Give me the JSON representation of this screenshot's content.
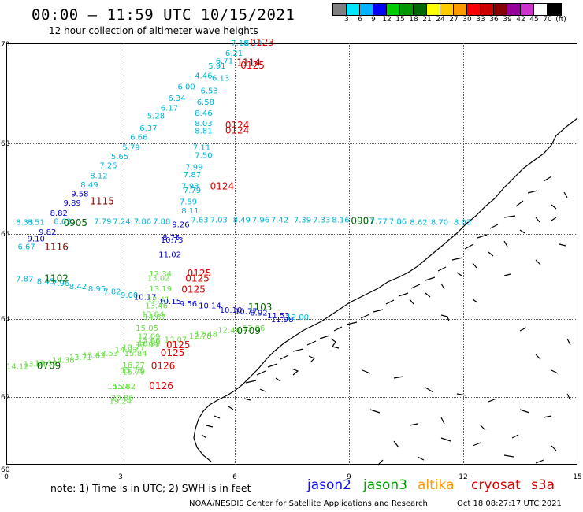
{
  "header": {
    "title": "00:00 – 11:59 UTC 10/15/2021",
    "subtitle": "12 hour collection of altimeter wave heights"
  },
  "colorbar": {
    "colors": [
      "#7f7f7f",
      "#00e6ff",
      "#00b4ff",
      "#0000ff",
      "#00cc00",
      "#009a00",
      "#006600",
      "#ffff00",
      "#ffcc00",
      "#ff9900",
      "#ff0000",
      "#cc0000",
      "#8b0000",
      "#990099",
      "#cc33cc",
      "#ffffff",
      "#000000"
    ],
    "labels": [
      "3",
      "6",
      "9",
      "12",
      "15",
      "18",
      "21",
      "24",
      "27",
      "30",
      "33",
      "36",
      "39",
      "42",
      "45",
      "70",
      "(ft)"
    ]
  },
  "axes": {
    "lat_labels": [
      "70",
      "68",
      "66",
      "64",
      "62",
      "60"
    ],
    "lon_labels": [
      "0",
      "3",
      "6",
      "9",
      "12",
      "15"
    ]
  },
  "satellite_colors": {
    "jason2": "#0000cc",
    "jason3": "#00a000",
    "altika": "#ff9900",
    "cryosat": "#e00000",
    "s3a": "#00b4d8",
    "s3a_light": "#66dd44"
  },
  "observations": [
    {
      "t": "7.18",
      "c": "#00b4d8",
      "lon": 5.9,
      "lat": 69.95
    },
    {
      "t": "6.10",
      "c": "#00b4d8",
      "lon": 6.25,
      "lat": 69.95
    },
    {
      "t": "6.21",
      "c": "#00b4d8",
      "lon": 5.75,
      "lat": 69.75
    },
    {
      "t": "6.71",
      "c": "#00b4d8",
      "lon": 5.5,
      "lat": 69.6
    },
    {
      "t": "5.91",
      "c": "#00b4d8",
      "lon": 5.3,
      "lat": 69.5
    },
    {
      "t": "4.46",
      "c": "#00b4d8",
      "lon": 4.95,
      "lat": 69.3
    },
    {
      "t": "6.13",
      "c": "#00b4d8",
      "lon": 5.4,
      "lat": 69.25
    },
    {
      "t": "6.00",
      "c": "#00b4d8",
      "lon": 4.5,
      "lat": 69.08
    },
    {
      "t": "6.53",
      "c": "#00b4d8",
      "lon": 5.1,
      "lat": 69.0
    },
    {
      "t": "6.34",
      "c": "#00b4d8",
      "lon": 4.25,
      "lat": 68.85
    },
    {
      "t": "6.58",
      "c": "#00b4d8",
      "lon": 5.0,
      "lat": 68.77
    },
    {
      "t": "6.17",
      "c": "#00b4d8",
      "lon": 4.05,
      "lat": 68.65
    },
    {
      "t": "8.46",
      "c": "#00b4d8",
      "lon": 4.95,
      "lat": 68.55
    },
    {
      "t": "5.28",
      "c": "#00b4d8",
      "lon": 3.7,
      "lat": 68.5
    },
    {
      "t": "8.03",
      "c": "#00b4d8",
      "lon": 4.95,
      "lat": 68.35
    },
    {
      "t": "6.37",
      "c": "#00b4d8",
      "lon": 3.5,
      "lat": 68.25
    },
    {
      "t": "8.81",
      "c": "#00b4d8",
      "lon": 4.95,
      "lat": 68.2
    },
    {
      "t": "6.66",
      "c": "#00b4d8",
      "lon": 3.25,
      "lat": 68.07
    },
    {
      "t": "5.79",
      "c": "#00b4d8",
      "lon": 3.05,
      "lat": 67.85
    },
    {
      "t": "7.11",
      "c": "#00b4d8",
      "lon": 4.9,
      "lat": 67.85
    },
    {
      "t": "5.65",
      "c": "#00b4d8",
      "lon": 2.75,
      "lat": 67.65
    },
    {
      "t": "7.50",
      "c": "#00b4d8",
      "lon": 4.95,
      "lat": 67.68
    },
    {
      "t": "7.25",
      "c": "#00b4d8",
      "lon": 2.45,
      "lat": 67.45
    },
    {
      "t": "7.99",
      "c": "#00b4d8",
      "lon": 4.7,
      "lat": 67.42
    },
    {
      "t": "8.12",
      "c": "#00b4d8",
      "lon": 2.2,
      "lat": 67.23
    },
    {
      "t": "7.87",
      "c": "#00b4d8",
      "lon": 4.65,
      "lat": 67.25
    },
    {
      "t": "8.49",
      "c": "#00b4d8",
      "lon": 1.95,
      "lat": 67.03
    },
    {
      "t": "7.93",
      "c": "#00b4d8",
      "lon": 4.6,
      "lat": 67.0
    },
    {
      "t": "7.79",
      "c": "#00b4d8",
      "lon": 4.65,
      "lat": 66.9
    },
    {
      "t": "9.58",
      "c": "#0000cc",
      "lon": 1.7,
      "lat": 66.83
    },
    {
      "t": "7.59",
      "c": "#00b4d8",
      "lon": 4.55,
      "lat": 66.65
    },
    {
      "t": "9.89",
      "c": "#0000cc",
      "lon": 1.5,
      "lat": 66.63
    },
    {
      "t": "8.82",
      "c": "#0000cc",
      "lon": 1.15,
      "lat": 66.4
    },
    {
      "t": "8.11",
      "c": "#00b4d8",
      "lon": 4.6,
      "lat": 66.45
    },
    {
      "t": "8.33",
      "c": "#00b4d8",
      "lon": 0.25,
      "lat": 66.2
    },
    {
      "t": "8.51",
      "c": "#00b4d8",
      "lon": 0.55,
      "lat": 66.2
    },
    {
      "t": "8.63",
      "c": "#00b4d8",
      "lon": 1.25,
      "lat": 66.22
    },
    {
      "t": "7.79",
      "c": "#00b4d8",
      "lon": 2.3,
      "lat": 66.22
    },
    {
      "t": "7.24",
      "c": "#00b4d8",
      "lon": 2.8,
      "lat": 66.22
    },
    {
      "t": "7.86",
      "c": "#00b4d8",
      "lon": 3.35,
      "lat": 66.22
    },
    {
      "t": "7.88",
      "c": "#00b4d8",
      "lon": 3.85,
      "lat": 66.22
    },
    {
      "t": "9.26",
      "c": "#0000cc",
      "lon": 4.35,
      "lat": 66.15
    },
    {
      "t": "7.63",
      "c": "#00b4d8",
      "lon": 4.85,
      "lat": 66.25
    },
    {
      "t": "7.03",
      "c": "#00b4d8",
      "lon": 5.35,
      "lat": 66.25
    },
    {
      "t": "8.49",
      "c": "#00b4d8",
      "lon": 5.95,
      "lat": 66.25
    },
    {
      "t": "7.96",
      "c": "#00b4d8",
      "lon": 6.45,
      "lat": 66.25
    },
    {
      "t": "7.42",
      "c": "#00b4d8",
      "lon": 6.95,
      "lat": 66.25
    },
    {
      "t": "7.39",
      "c": "#00b4d8",
      "lon": 7.55,
      "lat": 66.25
    },
    {
      "t": "7.33",
      "c": "#00b4d8",
      "lon": 8.05,
      "lat": 66.25
    },
    {
      "t": "8.16",
      "c": "#00b4d8",
      "lon": 8.55,
      "lat": 66.25
    },
    {
      "t": "7.77",
      "c": "#00b4d8",
      "lon": 9.55,
      "lat": 66.22
    },
    {
      "t": "7.86",
      "c": "#00b4d8",
      "lon": 10.05,
      "lat": 66.22
    },
    {
      "t": "8.62",
      "c": "#00b4d8",
      "lon": 10.6,
      "lat": 66.2
    },
    {
      "t": "8.70",
      "c": "#00b4d8",
      "lon": 11.15,
      "lat": 66.2
    },
    {
      "t": "8.03",
      "c": "#00b4d8",
      "lon": 11.75,
      "lat": 66.2
    },
    {
      "t": "9.82",
      "c": "#0000cc",
      "lon": 0.85,
      "lat": 65.98
    },
    {
      "t": "8.75",
      "c": "#0000cc",
      "lon": 4.1,
      "lat": 65.85
    },
    {
      "t": "9.10",
      "c": "#0000cc",
      "lon": 0.55,
      "lat": 65.82
    },
    {
      "t": "10.73",
      "c": "#0000cc",
      "lon": 4.05,
      "lat": 65.8
    },
    {
      "t": "6.67",
      "c": "#00b4d8",
      "lon": 0.3,
      "lat": 65.64
    },
    {
      "t": "11.02",
      "c": "#0000cc",
      "lon": 4.0,
      "lat": 65.45
    },
    {
      "t": "12.34",
      "c": "#66dd44",
      "lon": 3.75,
      "lat": 65.0
    },
    {
      "t": "13.02",
      "c": "#66dd44",
      "lon": 3.7,
      "lat": 64.9
    },
    {
      "t": "7.87",
      "c": "#00b4d8",
      "lon": 0.25,
      "lat": 64.88
    },
    {
      "t": "8.45",
      "c": "#00b4d8",
      "lon": 0.8,
      "lat": 64.82
    },
    {
      "t": "7.96",
      "c": "#00b4d8",
      "lon": 1.2,
      "lat": 64.78
    },
    {
      "t": "8.42",
      "c": "#00b4d8",
      "lon": 1.65,
      "lat": 64.7
    },
    {
      "t": "8.95",
      "c": "#00b4d8",
      "lon": 2.15,
      "lat": 64.65
    },
    {
      "t": "7.82",
      "c": "#00b4d8",
      "lon": 2.55,
      "lat": 64.58
    },
    {
      "t": "9.00",
      "c": "#00b4d8",
      "lon": 3.0,
      "lat": 64.5
    },
    {
      "t": "13.19",
      "c": "#66dd44",
      "lon": 3.75,
      "lat": 64.65
    },
    {
      "t": "10.17",
      "c": "#0000cc",
      "lon": 3.35,
      "lat": 64.45
    },
    {
      "t": "12.41",
      "c": "#66dd44",
      "lon": 3.7,
      "lat": 64.4
    },
    {
      "t": "10.15",
      "c": "#0000cc",
      "lon": 4.0,
      "lat": 64.35
    },
    {
      "t": "9.56",
      "c": "#0000cc",
      "lon": 4.55,
      "lat": 64.3
    },
    {
      "t": "13.46",
      "c": "#66dd44",
      "lon": 3.65,
      "lat": 64.25
    },
    {
      "t": "10.14",
      "c": "#0000cc",
      "lon": 5.05,
      "lat": 64.25
    },
    {
      "t": "10.10",
      "c": "#0000cc",
      "lon": 5.6,
      "lat": 64.15
    },
    {
      "t": "10.77",
      "c": "#0000cc",
      "lon": 6.0,
      "lat": 64.12
    },
    {
      "t": "8.92",
      "c": "#0000cc",
      "lon": 6.4,
      "lat": 64.08
    },
    {
      "t": "11.53",
      "c": "#0000cc",
      "lon": 6.85,
      "lat": 64.02
    },
    {
      "t": "12.00",
      "c": "#00b4d8",
      "lon": 7.35,
      "lat": 63.98
    },
    {
      "t": "11.98",
      "c": "#0000cc",
      "lon": 6.95,
      "lat": 63.92
    },
    {
      "t": "13.84",
      "c": "#66dd44",
      "lon": 3.55,
      "lat": 64.05
    },
    {
      "t": "14.67",
      "c": "#66dd44",
      "lon": 3.6,
      "lat": 63.98
    },
    {
      "t": "15.05",
      "c": "#66dd44",
      "lon": 3.4,
      "lat": 63.7
    },
    {
      "t": "12.44",
      "c": "#66dd44",
      "lon": 5.55,
      "lat": 63.65
    },
    {
      "t": "13.06",
      "c": "#66dd44",
      "lon": 6.2,
      "lat": 63.7
    },
    {
      "t": "12.48",
      "c": "#66dd44",
      "lon": 4.95,
      "lat": 63.55
    },
    {
      "t": "12.78",
      "c": "#66dd44",
      "lon": 4.8,
      "lat": 63.5
    },
    {
      "t": "17.09",
      "c": "#66dd44",
      "lon": 3.45,
      "lat": 63.48
    },
    {
      "t": "13.07",
      "c": "#66dd44",
      "lon": 4.15,
      "lat": 63.4
    },
    {
      "t": "15.66",
      "c": "#66dd44",
      "lon": 3.45,
      "lat": 63.38
    },
    {
      "t": "16.99",
      "c": "#66dd44",
      "lon": 3.45,
      "lat": 63.3
    },
    {
      "t": "17.99",
      "c": "#66dd44",
      "lon": 3.4,
      "lat": 63.27
    },
    {
      "t": "13.77",
      "c": "#66dd44",
      "lon": 3.05,
      "lat": 63.2
    },
    {
      "t": "14.03",
      "c": "#66dd44",
      "lon": 2.85,
      "lat": 63.14
    },
    {
      "t": "15.84",
      "c": "#66dd44",
      "lon": 3.1,
      "lat": 63.05
    },
    {
      "t": "13.53",
      "c": "#66dd44",
      "lon": 2.35,
      "lat": 63.05
    },
    {
      "t": "13.63",
      "c": "#66dd44",
      "lon": 2.0,
      "lat": 63.0
    },
    {
      "t": "13.71",
      "c": "#66dd44",
      "lon": 1.65,
      "lat": 62.95
    },
    {
      "t": "14.38",
      "c": "#66dd44",
      "lon": 1.2,
      "lat": 62.88
    },
    {
      "t": "13.32",
      "c": "#66dd44",
      "lon": 0.75,
      "lat": 62.8
    },
    {
      "t": "13.04",
      "c": "#66dd44",
      "lon": 0.45,
      "lat": 62.78
    },
    {
      "t": "14.12",
      "c": "#66dd44",
      "lon": 0.0,
      "lat": 62.72
    },
    {
      "t": "16.27",
      "c": "#66dd44",
      "lon": 3.05,
      "lat": 62.75
    },
    {
      "t": "15.73",
      "c": "#66dd44",
      "lon": 3.0,
      "lat": 62.62
    },
    {
      "t": "15.79",
      "c": "#66dd44",
      "lon": 3.05,
      "lat": 62.58
    },
    {
      "t": "15.24",
      "c": "#66dd44",
      "lon": 2.65,
      "lat": 62.2
    },
    {
      "t": "15.82",
      "c": "#66dd44",
      "lon": 2.8,
      "lat": 62.2
    },
    {
      "t": "20.86",
      "c": "#66dd44",
      "lon": 2.75,
      "lat": 61.9
    },
    {
      "t": "19.24",
      "c": "#66dd44",
      "lon": 2.7,
      "lat": 61.8
    }
  ],
  "track_labels": [
    {
      "t": "0123",
      "c": "#e00000",
      "lon": 6.4,
      "lat": 69.95
    },
    {
      "t": "1114",
      "c": "#8b0000",
      "lon": 6.05,
      "lat": 69.55
    },
    {
      "t": "0125",
      "c": "#e00000",
      "lon": 6.15,
      "lat": 69.5
    },
    {
      "t": "0124",
      "c": "#e00000",
      "lon": 5.75,
      "lat": 68.3
    },
    {
      "t": "0124",
      "c": "#e00000",
      "lon": 5.75,
      "lat": 68.2
    },
    {
      "t": "0124",
      "c": "#e00000",
      "lon": 5.35,
      "lat": 66.98
    },
    {
      "t": "1115",
      "c": "#8b0000",
      "lon": 2.2,
      "lat": 66.65
    },
    {
      "t": "0905",
      "c": "#006600",
      "lon": 1.5,
      "lat": 66.17
    },
    {
      "t": "0907",
      "c": "#006600",
      "lon": 9.05,
      "lat": 66.22
    },
    {
      "t": "1116",
      "c": "#8b0000",
      "lon": 1.0,
      "lat": 65.62
    },
    {
      "t": "0125",
      "c": "#e00000",
      "lon": 4.75,
      "lat": 65.0
    },
    {
      "t": "0125",
      "c": "#e00000",
      "lon": 4.7,
      "lat": 64.88
    },
    {
      "t": "1102",
      "c": "#006600",
      "lon": 1.0,
      "lat": 64.88
    },
    {
      "t": "0125",
      "c": "#e00000",
      "lon": 4.6,
      "lat": 64.62
    },
    {
      "t": "1103",
      "c": "#006600",
      "lon": 6.35,
      "lat": 64.2
    },
    {
      "t": "0709",
      "c": "#006600",
      "lon": 6.05,
      "lat": 63.62
    },
    {
      "t": "0125",
      "c": "#e00000",
      "lon": 4.2,
      "lat": 63.25
    },
    {
      "t": "0125",
      "c": "#e00000",
      "lon": 4.05,
      "lat": 63.05
    },
    {
      "t": "0709",
      "c": "#006600",
      "lon": 0.8,
      "lat": 62.72
    },
    {
      "t": "0126",
      "c": "#e00000",
      "lon": 3.8,
      "lat": 62.72
    },
    {
      "t": "0126",
      "c": "#e00000",
      "lon": 3.75,
      "lat": 62.2
    }
  ],
  "note": "note:  1) Time is in UTC;  2) SWH is in feet",
  "legend": [
    {
      "name": "jason2",
      "color": "#1010ee"
    },
    {
      "name": "jason3",
      "color": "#00a000"
    },
    {
      "name": "altika",
      "color": "#ff9900"
    },
    {
      "name": "cryosat",
      "color": "#e00000"
    },
    {
      "name": "s3a",
      "color": "#cc0000"
    }
  ],
  "credit": "NOAA/NESDIS Center for Satellite Applications and Research",
  "timestamp": "Oct 18 08:27:17 UTC 2021"
}
